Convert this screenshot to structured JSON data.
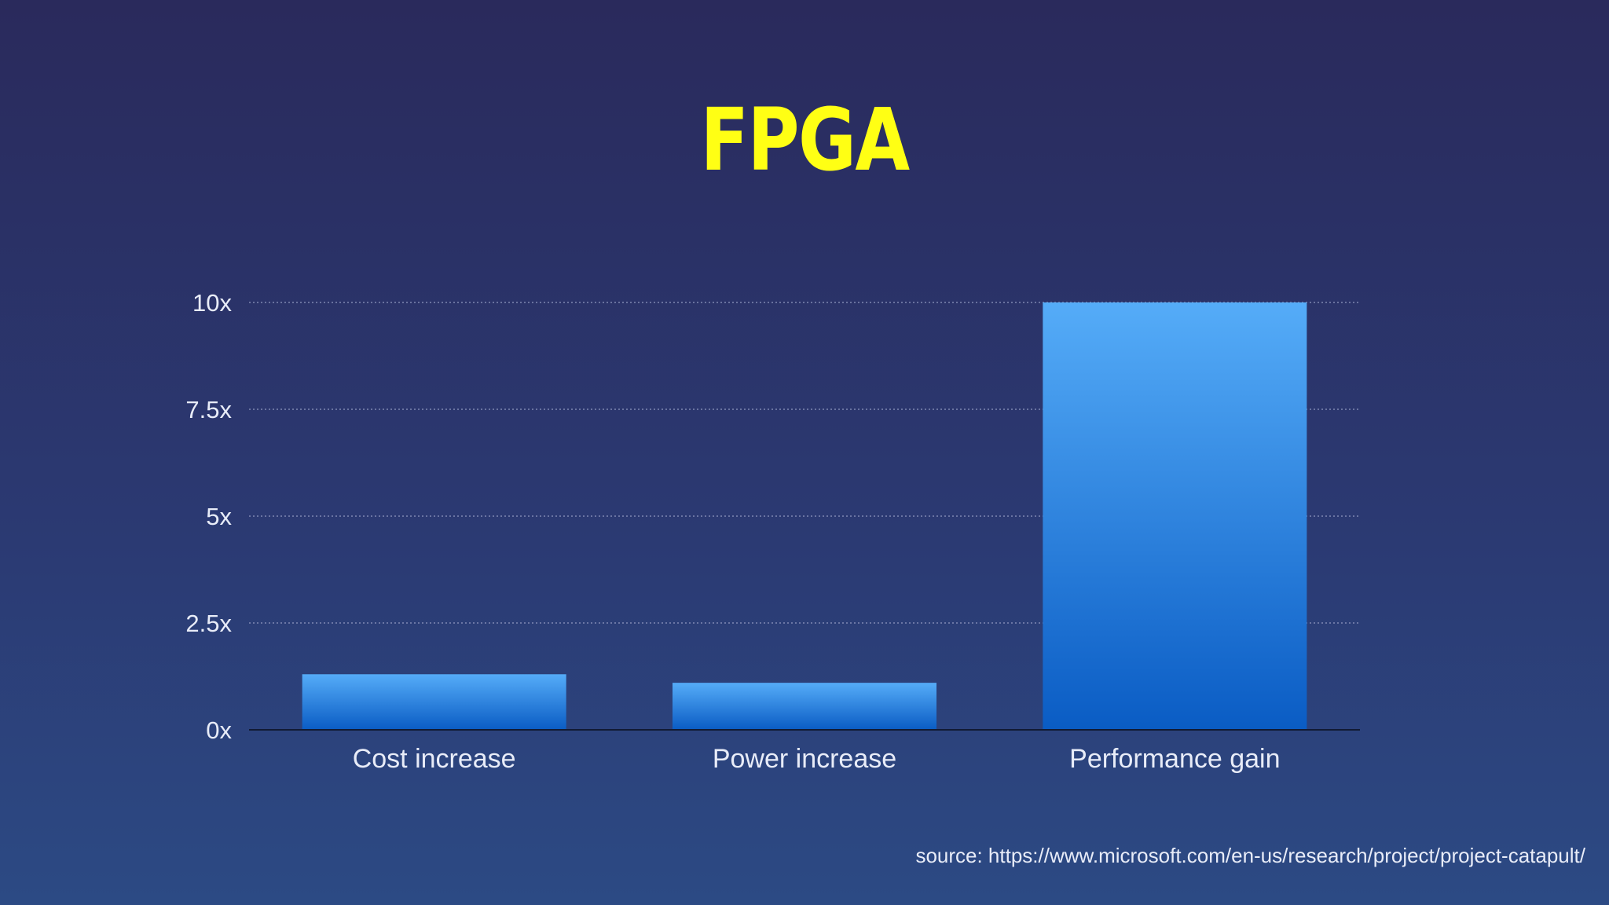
{
  "slide": {
    "title": "FPGA",
    "source": "source: https://www.microsoft.com/en-us/research/project/project-catapult/"
  },
  "colors": {
    "title": "#ffff14",
    "bar_top": "#55acf8",
    "bar_bottom": "#0a5cc4",
    "text": "#e8ecf8"
  },
  "chart_data": {
    "type": "bar",
    "categories": [
      "Cost increase",
      "Power increase",
      "Performance gain"
    ],
    "values": [
      1.3,
      1.1,
      10
    ],
    "ylim": [
      0,
      10
    ],
    "yticks": [
      0,
      2.5,
      5,
      7.5,
      10
    ],
    "ytick_labels": [
      "0x",
      "2.5x",
      "5x",
      "7.5x",
      "10x"
    ],
    "grid": true,
    "legend": "none"
  }
}
